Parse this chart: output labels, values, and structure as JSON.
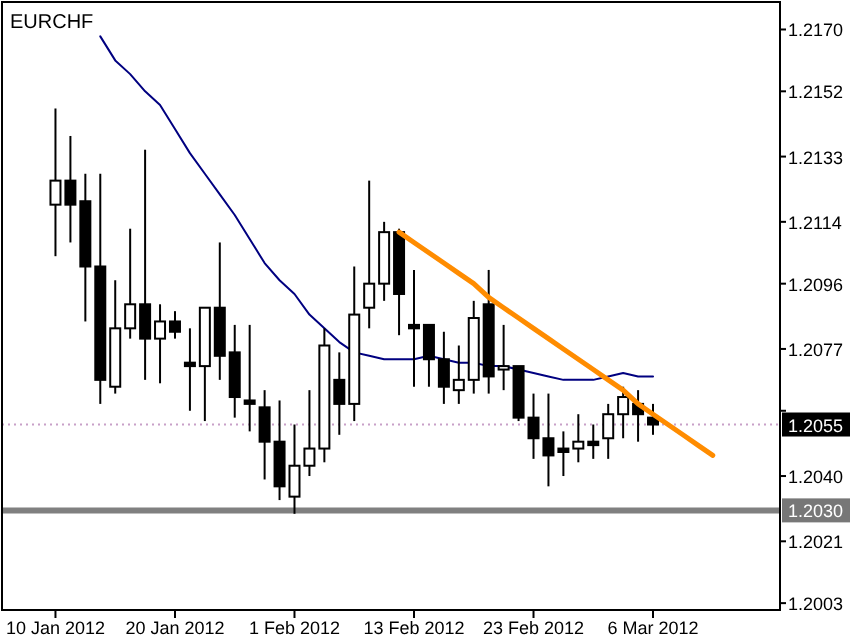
{
  "chart_data": {
    "type": "candlestick",
    "title": "EURCHF",
    "categories": [
      "10 Jan 2012",
      null,
      null,
      null,
      null,
      null,
      null,
      null,
      "20 Jan 2012",
      null,
      null,
      null,
      null,
      null,
      null,
      null,
      "1 Feb 2012",
      null,
      null,
      null,
      null,
      null,
      null,
      null,
      "13 Feb 2012",
      null,
      null,
      null,
      null,
      null,
      null,
      null,
      "23 Feb 2012",
      null,
      null,
      null,
      null,
      null,
      null,
      null,
      "6 Mar 2012",
      null,
      null,
      null,
      null,
      null,
      null,
      null,
      null
    ],
    "ohlc": [
      [
        1.2119,
        1.2147,
        1.2104,
        1.2126
      ],
      [
        1.2126,
        1.2139,
        1.2108,
        1.2119
      ],
      [
        1.212,
        1.2128,
        1.2085,
        1.2101
      ],
      [
        1.2101,
        1.2128,
        1.2061,
        1.2068
      ],
      [
        1.2066,
        1.2097,
        1.2064,
        1.2083
      ],
      [
        1.2083,
        1.2112,
        1.208,
        1.209
      ],
      [
        1.209,
        1.2135,
        1.2068,
        1.208
      ],
      [
        1.208,
        1.209,
        1.2067,
        1.2085
      ],
      [
        1.2085,
        1.2088,
        1.208,
        1.2082
      ],
      [
        1.2073,
        1.2083,
        1.2059,
        1.2072
      ],
      [
        1.2072,
        1.2089,
        1.2056,
        1.2089
      ],
      [
        1.2089,
        1.2108,
        1.2068,
        1.2075
      ],
      [
        1.2076,
        1.2084,
        1.2057,
        1.2063
      ],
      [
        1.2062,
        1.2084,
        1.2053,
        1.2061
      ],
      [
        1.206,
        1.2065,
        1.2039,
        1.205
      ],
      [
        1.205,
        1.2062,
        1.2033,
        1.2037
      ],
      [
        1.2034,
        1.2055,
        1.2029,
        1.2043
      ],
      [
        1.2043,
        1.2065,
        1.204,
        1.2048
      ],
      [
        1.2048,
        1.2083,
        1.2044,
        1.2078
      ],
      [
        1.2068,
        1.2076,
        1.2052,
        1.2061
      ],
      [
        1.2061,
        1.2101,
        1.2056,
        1.2087
      ],
      [
        1.2089,
        1.2126,
        1.2083,
        1.2096
      ],
      [
        1.2096,
        1.2114,
        1.2091,
        1.2111
      ],
      [
        1.2111,
        1.2112,
        1.2081,
        1.2093
      ],
      [
        1.2084,
        1.21,
        1.2066,
        1.2083
      ],
      [
        1.2084,
        1.2084,
        1.2066,
        1.2074
      ],
      [
        1.2074,
        1.2082,
        1.2061,
        1.2066
      ],
      [
        1.2065,
        1.2078,
        1.2061,
        1.2068
      ],
      [
        1.2068,
        1.2091,
        1.2064,
        1.2086
      ],
      [
        1.209,
        1.21,
        1.2064,
        1.2069
      ],
      [
        1.2071,
        1.2084,
        1.2065,
        1.2072
      ],
      [
        1.2072,
        1.2072,
        1.2056,
        1.2057
      ],
      [
        1.2057,
        1.2064,
        1.2045,
        1.2051
      ],
      [
        1.2051,
        1.2064,
        1.2037,
        1.2046
      ],
      [
        1.2048,
        1.2053,
        1.204,
        1.2047
      ],
      [
        1.2048,
        1.2058,
        1.2044,
        1.205
      ],
      [
        1.205,
        1.2055,
        1.2045,
        1.2049
      ],
      [
        1.2051,
        1.2061,
        1.2045,
        1.2058
      ],
      [
        1.2058,
        1.2066,
        1.2051,
        1.2063
      ],
      [
        1.2061,
        1.2065,
        1.205,
        1.2058
      ],
      [
        1.2057,
        1.2061,
        1.2052,
        1.2055
      ],
      null,
      null,
      null,
      null,
      null,
      null,
      null,
      null
    ],
    "series": [
      {
        "type": "line",
        "color": "#000080",
        "values": [
          null,
          null,
          null,
          1.2168,
          1.2161,
          1.2157,
          1.2152,
          1.2148,
          1.2141,
          1.2134,
          1.2128,
          1.2122,
          1.2116,
          1.2109,
          1.2102,
          1.2097,
          1.2093,
          1.2087,
          1.2083,
          1.2079,
          1.2076,
          1.2075,
          1.2074,
          1.2074,
          1.2074,
          1.2075,
          1.2074,
          1.2073,
          1.2073,
          1.2072,
          1.2072,
          1.2071,
          1.207,
          1.2069,
          1.2068,
          1.2068,
          1.2068,
          1.2069,
          1.207,
          1.2069,
          1.2069,
          null,
          null,
          null,
          null,
          null,
          null,
          null,
          null
        ]
      },
      {
        "type": "line",
        "color": "#ff8c00",
        "values": [
          null,
          null,
          null,
          null,
          null,
          null,
          null,
          null,
          null,
          null,
          null,
          null,
          null,
          null,
          null,
          null,
          null,
          null,
          null,
          null,
          null,
          null,
          null,
          1.2111,
          1.2108,
          1.2105,
          1.2102,
          1.2099,
          1.2096,
          1.2092,
          1.2089,
          1.2086,
          1.2083,
          1.208,
          1.2077,
          1.2074,
          1.2071,
          1.2068,
          1.2065,
          1.2061,
          1.2058,
          1.2055,
          1.2052,
          1.2049,
          1.2046,
          null,
          null,
          null,
          null
        ]
      }
    ],
    "ylim": [
      1.2001,
      1.2178
    ],
    "yticks": [
      {
        "value": 1.217,
        "label": "1.2170"
      },
      1.2152,
      1.2133,
      1.2114,
      1.2096,
      1.2077,
      {
        "value": 1.2059,
        "label": null
      },
      {
        "value": 1.204,
        "label": "1.2040"
      },
      1.2021,
      1.2003
    ],
    "ref_lines": [
      {
        "axis": "y",
        "value": 1.2055,
        "label": "1.2055",
        "color": "#c8a0c8",
        "line_style": "dotted"
      },
      {
        "axis": "y",
        "value": 1.203,
        "label": "1.2030",
        "color": "#808080",
        "line_style": "solid"
      }
    ],
    "grid": false
  }
}
